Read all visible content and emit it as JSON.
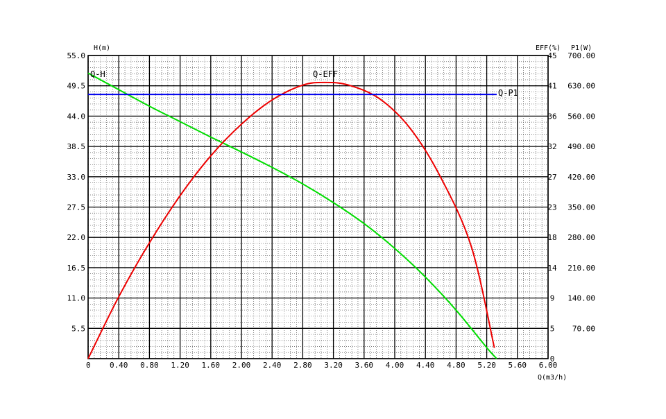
{
  "chart_data": {
    "type": "line",
    "x_axis": {
      "label": "Q(m3/h)",
      "min": 0,
      "max": 6.0,
      "ticks": [
        "0.40",
        "0.80",
        "1.20",
        "1.60",
        "2.00",
        "2.40",
        "2.80",
        "3.20",
        "3.60",
        "4.00",
        "4.40",
        "4.80",
        "5.20",
        "5.60",
        "6.00"
      ],
      "tick_values": [
        0.4,
        0.8,
        1.2,
        1.6,
        2.0,
        2.4,
        2.8,
        3.2,
        3.6,
        4.0,
        4.4,
        4.8,
        5.2,
        5.6,
        6.0
      ],
      "origin_label": "0"
    },
    "y_left": {
      "label": "H(m)",
      "min": 0,
      "max": 55,
      "ticks": [
        "5.5",
        "11.0",
        "16.5",
        "22.0",
        "27.5",
        "33.0",
        "38.5",
        "44.0",
        "49.5",
        "55.0"
      ],
      "tick_values": [
        5.5,
        11,
        16.5,
        22,
        27.5,
        33,
        38.5,
        44,
        49.5,
        55
      ]
    },
    "y_eff": {
      "label": "EFF(%)",
      "min": 0,
      "max": 45,
      "ticks": [
        "0",
        "5",
        "9",
        "14",
        "18",
        "23",
        "27",
        "32",
        "36",
        "41",
        "45"
      ]
    },
    "y_p1": {
      "label": "P1(W)",
      "min": 0,
      "max": 700,
      "ticks": [
        "70.00",
        "140.00",
        "210.00",
        "280.00",
        "350.00",
        "420.00",
        "490.00",
        "560.00",
        "630.00",
        "700.00"
      ]
    },
    "series": [
      {
        "name": "Q-H",
        "axis": "h",
        "color": "#00dd00",
        "x": [
          0,
          0.4,
          0.8,
          1.2,
          1.6,
          2.0,
          2.4,
          2.8,
          3.2,
          3.6,
          4.0,
          4.4,
          4.8,
          5.2,
          5.33
        ],
        "y": [
          51.8,
          48.8,
          45.8,
          43.0,
          40.2,
          37.5,
          34.7,
          31.7,
          28.3,
          24.5,
          20.0,
          14.8,
          8.8,
          2.0,
          0
        ]
      },
      {
        "name": "Q-EFF",
        "axis": "eff",
        "color": "#ee0000",
        "x": [
          0,
          0.4,
          0.8,
          1.2,
          1.6,
          2.0,
          2.4,
          2.8,
          3.1,
          3.4,
          3.8,
          4.2,
          4.6,
          5.0,
          5.3
        ],
        "y": [
          0,
          9.2,
          17.2,
          24.2,
          30.1,
          34.8,
          38.4,
          40.6,
          41.0,
          40.6,
          38.6,
          34.2,
          26.9,
          16.6,
          1.6
        ]
      },
      {
        "name": "Q-P1",
        "axis": "p1",
        "color": "#0000ee",
        "x": [
          0,
          5.33
        ],
        "y": [
          610,
          610
        ]
      }
    ],
    "grid": true
  }
}
